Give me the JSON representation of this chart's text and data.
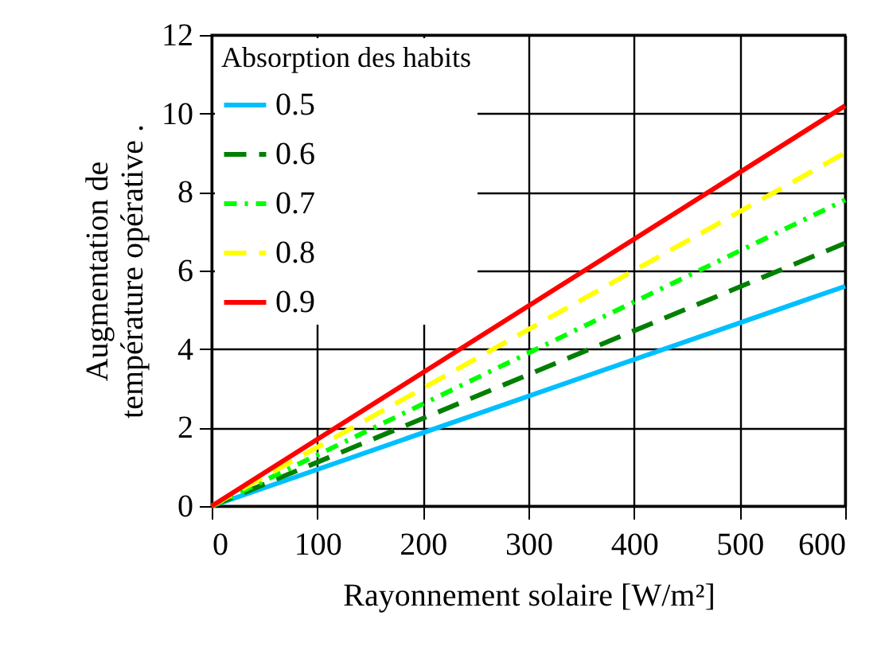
{
  "chart_data": {
    "type": "line",
    "xlabel": "Rayonnement solaire [W/m²]",
    "ylabel": "Augmentation de\ntempérature opérative .",
    "legend_title": "Absorption des habits",
    "x": [
      0,
      600
    ],
    "series": [
      {
        "name": "0.5",
        "color": "#00bfff",
        "values": [
          0,
          5.6
        ],
        "line_style": "solid"
      },
      {
        "name": "0.6",
        "color": "#007f00",
        "values": [
          0,
          6.7
        ],
        "line_style": "dashed"
      },
      {
        "name": "0.7",
        "color": "#00ff00",
        "values": [
          0,
          7.8
        ],
        "line_style": "dotted"
      },
      {
        "name": "0.8",
        "color": "#ffff00",
        "values": [
          0,
          9.0
        ],
        "line_style": "dashed"
      },
      {
        "name": "0.9",
        "color": "#ff0000",
        "values": [
          0,
          10.2
        ],
        "line_style": "solid"
      }
    ],
    "xlim": [
      0,
      600
    ],
    "xticks": [
      0,
      100,
      200,
      300,
      400,
      500,
      600
    ],
    "ylim": [
      0,
      12
    ],
    "yticks": [
      0,
      2,
      4,
      6,
      8,
      10,
      12
    ],
    "grid": true,
    "legend": "top left"
  }
}
